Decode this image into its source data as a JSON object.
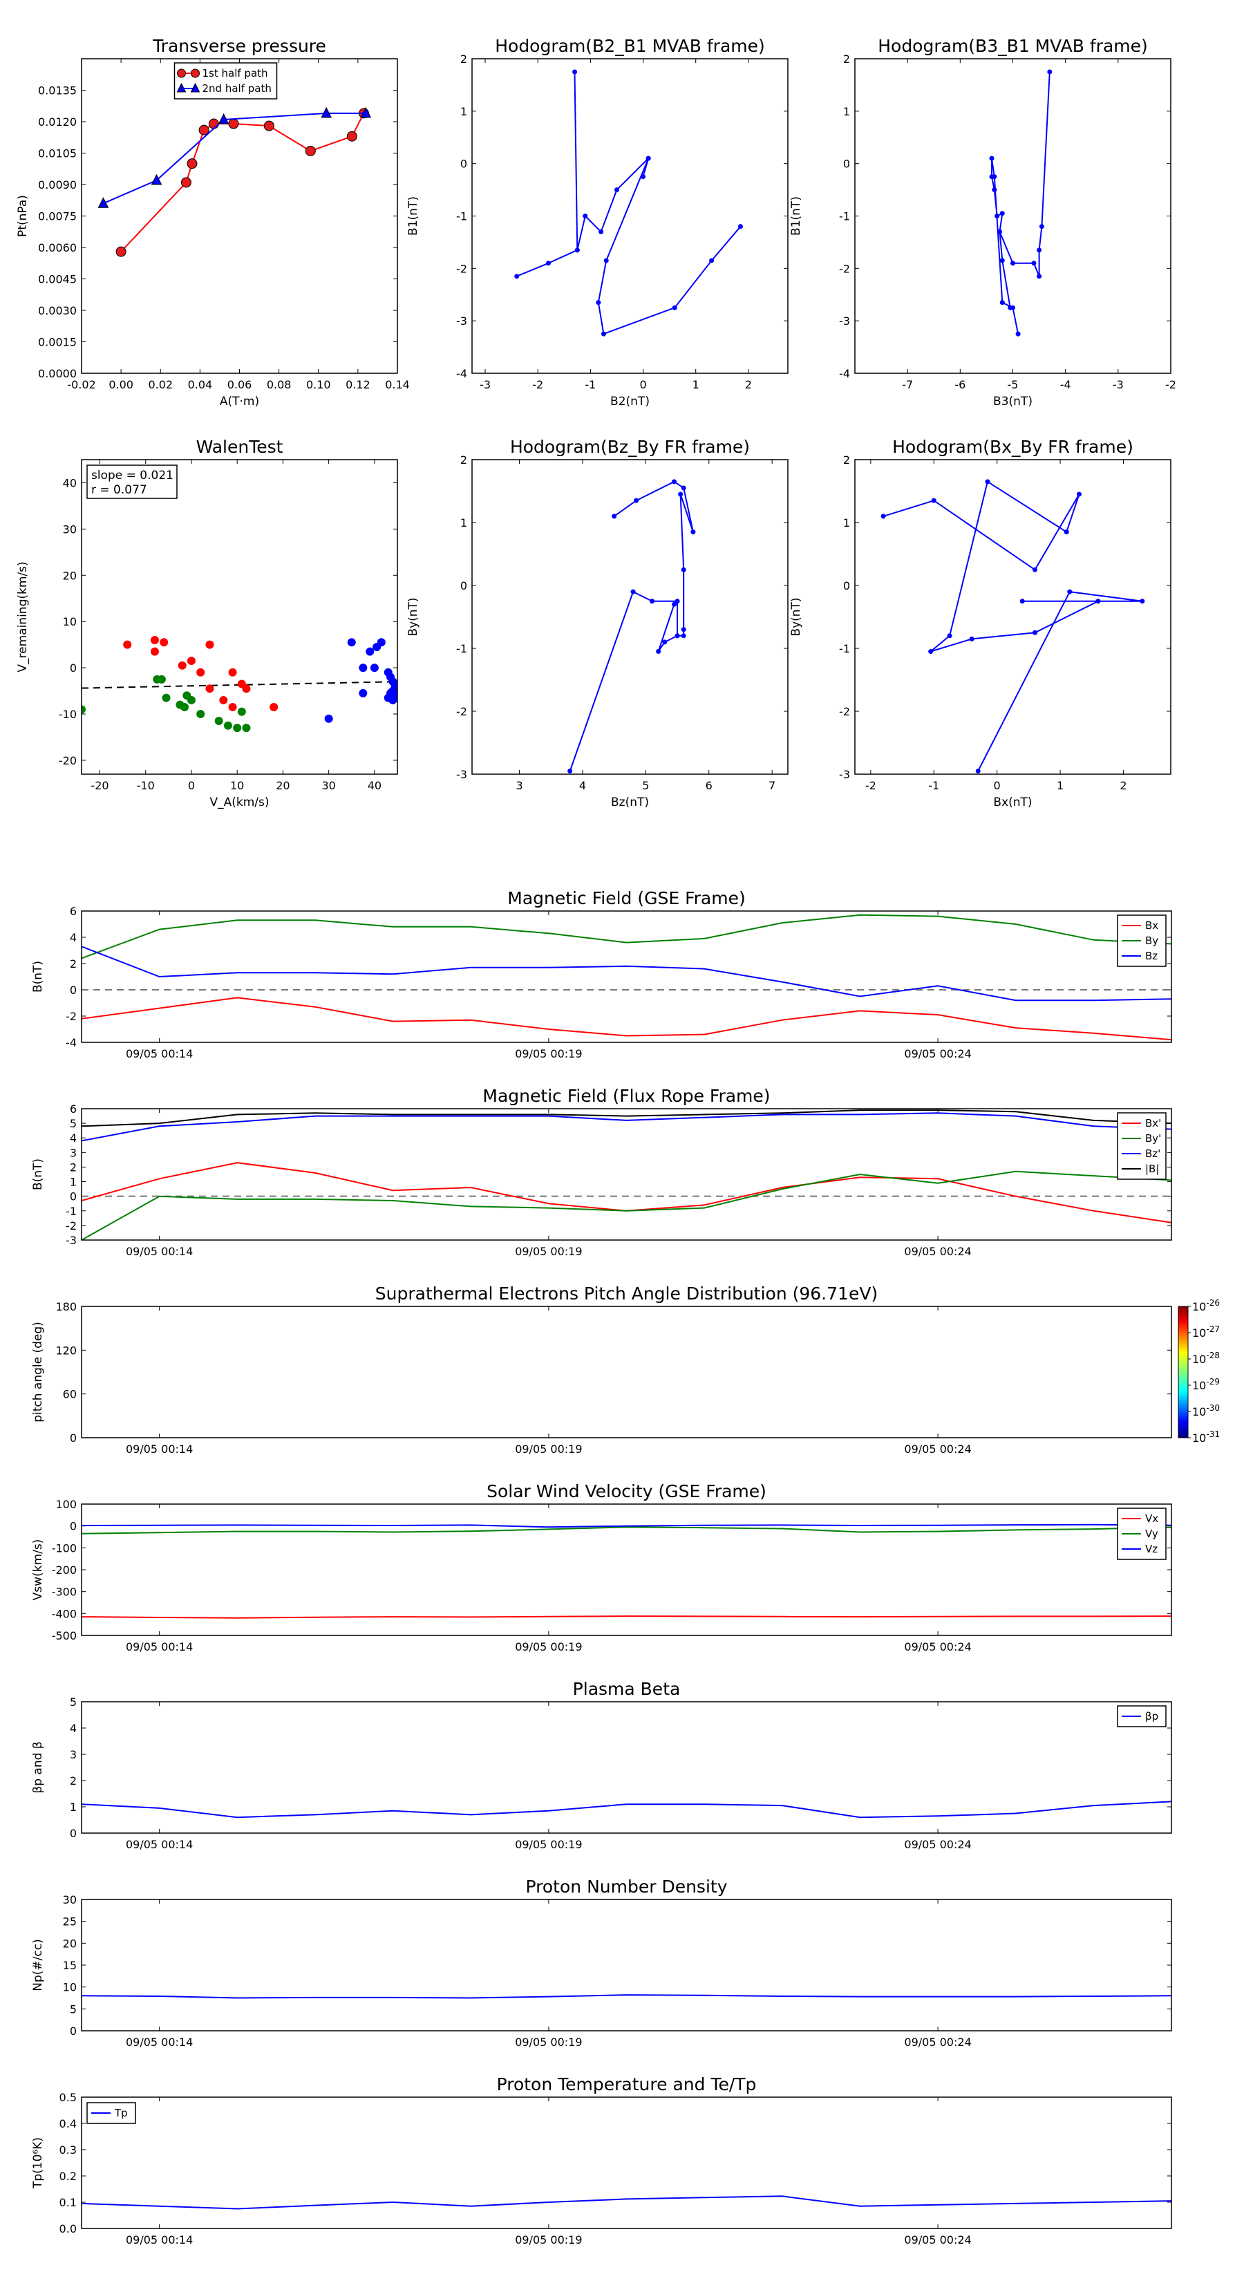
{
  "colors": {
    "red": "#ff0000",
    "green": "#008000",
    "blue": "#0000ff",
    "black": "#000000",
    "darkred": "#cc0000"
  },
  "chart_data": [
    {
      "id": "tp",
      "type": "line",
      "title": "Transverse pressure",
      "xlabel": "A(T·m)",
      "ylabel": "Pt(nPa)",
      "xlim": [
        -0.02,
        0.14
      ],
      "ylim": [
        0,
        0.015
      ],
      "xticks": [
        "-0.02",
        "0.00",
        "0.02",
        "0.04",
        "0.06",
        "0.08",
        "0.10",
        "0.12",
        "0.14"
      ],
      "yticks": [
        "0.0000",
        "0.0015",
        "0.0030",
        "0.0045",
        "0.0060",
        "0.0075",
        "0.0090",
        "0.0105",
        "0.0120",
        "0.0135"
      ],
      "legend": "top-center",
      "series": [
        {
          "name": "1st half path",
          "color": "red",
          "marker": "circle",
          "x": [
            0.0,
            0.033,
            0.036,
            0.042,
            0.047,
            0.057,
            0.075,
            0.096,
            0.117,
            0.123
          ],
          "y": [
            0.0058,
            0.0091,
            0.01,
            0.0116,
            0.0119,
            0.0119,
            0.0118,
            0.0106,
            0.0113,
            0.0124
          ]
        },
        {
          "name": "2nd half path",
          "color": "blue",
          "marker": "triangle",
          "x": [
            -0.009,
            0.018,
            0.052,
            0.104,
            0.124
          ],
          "y": [
            0.0081,
            0.0092,
            0.0121,
            0.0124,
            0.0124
          ]
        }
      ]
    },
    {
      "id": "h1",
      "type": "line",
      "title": "Hodogram(B2_B1 MVAB frame)",
      "xlabel": "B2(nT)",
      "ylabel": "B1(nT)",
      "xlim": [
        -3.25,
        2.75
      ],
      "ylim": [
        -4,
        2
      ],
      "xticks": [
        "-3",
        "-2",
        "-1",
        "0",
        "1",
        "2"
      ],
      "yticks": [
        "-4",
        "-3",
        "-2",
        "-1",
        "0",
        "1",
        "2"
      ],
      "series": [
        {
          "color": "blue",
          "marker": "dot",
          "x": [
            -1.3,
            -1.25,
            -1.1,
            -0.8,
            -0.5,
            0.1,
            -0.7,
            -0.85,
            -0.75,
            0.6,
            1.3,
            1.85
          ],
          "y": [
            1.75,
            -1.65,
            -1.0,
            -1.3,
            -0.5,
            0.1,
            -1.85,
            -2.65,
            -3.25,
            -2.75,
            -1.85,
            -1.2
          ]
        },
        {
          "color": "blue",
          "marker": "dot",
          "x": [
            -1.25,
            -1.8,
            -2.4
          ],
          "y": [
            -1.65,
            -1.9,
            -2.15
          ]
        },
        {
          "color": "blue",
          "marker": "dot",
          "x": [
            0.1,
            0.0
          ],
          "y": [
            0.1,
            -0.25
          ]
        }
      ]
    },
    {
      "id": "h2",
      "type": "line",
      "title": "Hodogram(B3_B1 MVAB frame)",
      "xlabel": "B3(nT)",
      "ylabel": "B1(nT)",
      "xlim": [
        -8,
        -2
      ],
      "ylim": [
        -4,
        2
      ],
      "xticks": [
        "-7",
        "-6",
        "-5",
        "-4",
        "-3",
        "-2"
      ],
      "yticks": [
        "-4",
        "-3",
        "-2",
        "-1",
        "0",
        "1",
        "2"
      ],
      "series": [
        {
          "color": "blue",
          "marker": "dot",
          "x": [
            -4.3,
            -4.45,
            -4.5,
            -4.5,
            -4.6,
            -5.0,
            -5.25,
            -5.2,
            -5.3,
            -5.35,
            -5.4,
            -5.4,
            -5.35,
            -5.2,
            -5.0,
            -4.9
          ],
          "y": [
            1.75,
            -1.2,
            -1.65,
            -2.15,
            -1.9,
            -1.9,
            -1.3,
            -0.95,
            -1.0,
            -0.5,
            -0.25,
            0.1,
            -0.25,
            -2.65,
            -2.75,
            -3.25
          ]
        },
        {
          "color": "blue",
          "marker": "dot",
          "x": [
            -5.25,
            -5.2,
            -5.05
          ],
          "y": [
            -1.3,
            -1.85,
            -2.75
          ]
        }
      ]
    },
    {
      "id": "walen",
      "type": "scatter",
      "title": "WalenTest",
      "xlabel": "V_A(km/s)",
      "ylabel": "V_remaining(km/s)",
      "xlim": [
        -24,
        45
      ],
      "ylim": [
        -23,
        45
      ],
      "xticks": [
        "-20",
        "-10",
        "0",
        "10",
        "20",
        "30",
        "40"
      ],
      "yticks": [
        "-20",
        "-10",
        "0",
        "10",
        "20",
        "30",
        "40"
      ],
      "annotation": [
        "slope = 0.021",
        "r = 0.077"
      ],
      "fit": {
        "x": [
          -24,
          45
        ],
        "y": [
          -4.4,
          -3.0
        ]
      },
      "series": [
        {
          "color": "red",
          "x": [
            -14,
            -8,
            -6,
            -8,
            -2,
            0,
            2,
            4,
            7,
            9,
            11,
            4,
            12,
            9,
            18
          ],
          "y": [
            5,
            6,
            5.5,
            3.5,
            0.5,
            1.5,
            -1,
            5,
            -7,
            -1,
            -3.5,
            -4.5,
            -4.5,
            -8.5,
            -8.5
          ]
        },
        {
          "color": "green",
          "x": [
            -24,
            -7.5,
            -6.5,
            -5.5,
            -2.5,
            -1.5,
            -1,
            0,
            2,
            6,
            8,
            10,
            12,
            11
          ],
          "y": [
            -9,
            -2.5,
            -2.5,
            -6.5,
            -8,
            -8.5,
            -6,
            -7,
            -10,
            -11.5,
            -12.5,
            -13,
            -13,
            -9.5
          ]
        },
        {
          "color": "blue",
          "x": [
            35,
            37.5,
            39,
            40.5,
            41.5,
            43,
            43.5,
            44,
            44.5,
            44,
            43.5,
            44.5,
            43,
            44,
            40,
            37.5,
            30
          ],
          "y": [
            5.5,
            -5.5,
            3.5,
            4.5,
            5.5,
            -1,
            -2,
            -3,
            -4,
            -5,
            -5.5,
            -6,
            -6.5,
            -7,
            0,
            0,
            -11
          ]
        }
      ]
    },
    {
      "id": "h3",
      "type": "line",
      "title": "Hodogram(Bz_By FR frame)",
      "xlabel": "Bz(nT)",
      "ylabel": "By(nT)",
      "xlim": [
        2.25,
        7.25
      ],
      "ylim": [
        -3,
        2
      ],
      "xticks": [
        "3",
        "4",
        "5",
        "6",
        "7"
      ],
      "yticks": [
        "-3",
        "-2",
        "-1",
        "0",
        "1",
        "2"
      ],
      "series": [
        {
          "color": "blue",
          "marker": "dot",
          "x": [
            3.8,
            4.8,
            5.1,
            5.5,
            5.5,
            5.6,
            5.6,
            5.6,
            5.55,
            5.75,
            5.6,
            5.45,
            4.85,
            4.5
          ],
          "y": [
            -2.95,
            -0.1,
            -0.25,
            -0.25,
            -0.8,
            -0.8,
            -0.7,
            0.25,
            1.45,
            0.85,
            1.55,
            1.65,
            1.35,
            1.1
          ]
        },
        {
          "color": "blue",
          "marker": "dot",
          "x": [
            5.5,
            5.3,
            5.2,
            5.45
          ],
          "y": [
            -0.8,
            -0.9,
            -1.05,
            -0.3
          ]
        }
      ]
    },
    {
      "id": "h4",
      "type": "line",
      "title": "Hodogram(Bx_By FR frame)",
      "xlabel": "Bx(nT)",
      "ylabel": "By(nT)",
      "xlim": [
        -2.25,
        2.75
      ],
      "ylim": [
        -3,
        2
      ],
      "xticks": [
        "-2",
        "-1",
        "0",
        "1",
        "2"
      ],
      "yticks": [
        "-3",
        "-2",
        "-1",
        "0",
        "1",
        "2"
      ],
      "series": [
        {
          "color": "blue",
          "marker": "dot",
          "x": [
            -0.3,
            1.15,
            2.3,
            0.4,
            1.6,
            0.6,
            -0.4,
            -1.05,
            -0.75,
            -0.15,
            1.1,
            1.3,
            0.6,
            -1.0,
            -1.8
          ],
          "y": [
            -2.95,
            -0.1,
            -0.25,
            -0.25,
            -0.25,
            -0.75,
            -0.85,
            -1.05,
            -0.8,
            1.65,
            0.85,
            1.45,
            0.25,
            1.35,
            1.1
          ]
        }
      ]
    },
    {
      "id": "mag",
      "type": "line",
      "title": "Magnetic Field (GSE Frame)",
      "ylabel": "B(nT)",
      "xlim": [
        0,
        14
      ],
      "ylim": [
        -4,
        6
      ],
      "xticks": [
        "09/05 00:14",
        "09/05 00:19",
        "09/05 00:24"
      ],
      "xtick_pos": [
        1,
        6,
        11
      ],
      "yticks": [
        "-4",
        "-2",
        "0",
        "2",
        "4",
        "6"
      ],
      "zero_line": true,
      "legend": "top-right",
      "series": [
        {
          "name": "Bx",
          "color": "red",
          "values": [
            -2.2,
            -1.4,
            -0.6,
            -1.3,
            -2.4,
            -2.3,
            -3.0,
            -3.5,
            -3.4,
            -2.3,
            -1.6,
            -1.9,
            -2.9,
            -3.3,
            -3.8
          ]
        },
        {
          "name": "By",
          "color": "green",
          "values": [
            2.4,
            4.6,
            5.3,
            5.3,
            4.8,
            4.8,
            4.3,
            3.6,
            3.9,
            5.1,
            5.7,
            5.6,
            5.0,
            3.8,
            3.5
          ]
        },
        {
          "name": "Bz",
          "color": "blue",
          "values": [
            3.3,
            1.0,
            1.3,
            1.3,
            1.2,
            1.7,
            1.7,
            1.8,
            1.6,
            0.6,
            -0.5,
            0.3,
            -0.8,
            -0.8,
            -0.7
          ]
        }
      ]
    },
    {
      "id": "magfr",
      "type": "line",
      "title": "Magnetic Field (Flux Rope Frame)",
      "ylabel": "B(nT)",
      "xlim": [
        0,
        14
      ],
      "ylim": [
        -3,
        6
      ],
      "xticks": [
        "09/05 00:14",
        "09/05 00:19",
        "09/05 00:24"
      ],
      "xtick_pos": [
        1,
        6,
        11
      ],
      "yticks": [
        "-3",
        "-2",
        "-1",
        "0",
        "1",
        "2",
        "3",
        "4",
        "5",
        "6"
      ],
      "zero_line": true,
      "legend": "top-right",
      "series": [
        {
          "name": "Bx'",
          "color": "red",
          "values": [
            -0.3,
            1.2,
            2.3,
            1.6,
            0.4,
            0.6,
            -0.5,
            -1.0,
            -0.6,
            0.6,
            1.3,
            1.2,
            0.0,
            -1.0,
            -1.8
          ]
        },
        {
          "name": "By'",
          "color": "green",
          "values": [
            -3.0,
            0.0,
            -0.2,
            -0.2,
            -0.3,
            -0.7,
            -0.8,
            -1.0,
            -0.8,
            0.5,
            1.5,
            0.9,
            1.7,
            1.4,
            1.1
          ]
        },
        {
          "name": "Bz'",
          "color": "blue",
          "values": [
            3.8,
            4.8,
            5.1,
            5.5,
            5.5,
            5.5,
            5.5,
            5.2,
            5.4,
            5.6,
            5.6,
            5.7,
            5.5,
            4.8,
            4.6
          ]
        },
        {
          "name": "|B|",
          "color": "black",
          "values": [
            4.8,
            5.0,
            5.6,
            5.7,
            5.6,
            5.6,
            5.6,
            5.5,
            5.6,
            5.7,
            5.9,
            5.9,
            5.8,
            5.2,
            5.0
          ]
        }
      ]
    },
    {
      "id": "pad",
      "type": "heatmap",
      "title": "Suprathermal Electrons Pitch Angle Distribution (96.71eV)",
      "ylabel": "pitch angle (deg)",
      "xlim": [
        0,
        14
      ],
      "ylim": [
        0,
        180
      ],
      "xticks": [
        "09/05 00:14",
        "09/05 00:19",
        "09/05 00:24"
      ],
      "xtick_pos": [
        1,
        6,
        11
      ],
      "yticks": [
        "0",
        "60",
        "120",
        "180"
      ],
      "colorbar": {
        "ticks": [
          "10",
          "10",
          "10",
          "10",
          "10",
          "10"
        ],
        "exponents": [
          "-31",
          "-30",
          "-29",
          "-28",
          "-27",
          "-26"
        ]
      }
    },
    {
      "id": "vsw",
      "type": "line",
      "title": "Solar Wind Velocity (GSE Frame)",
      "ylabel": "Vsw(km/s)",
      "xlim": [
        0,
        14
      ],
      "ylim": [
        -500,
        100
      ],
      "xticks": [
        "09/05 00:14",
        "09/05 00:19",
        "09/05 00:24"
      ],
      "xtick_pos": [
        1,
        6,
        11
      ],
      "yticks": [
        "-500",
        "-400",
        "-300",
        "-200",
        "-100",
        "0",
        "100"
      ],
      "legend": "top-right",
      "series": [
        {
          "name": "Vx",
          "color": "red",
          "values": [
            -415,
            -418,
            -420,
            -417,
            -415,
            -416,
            -414,
            -412,
            -413,
            -414,
            -415,
            -414,
            -413,
            -413,
            -412
          ]
        },
        {
          "name": "Vy",
          "color": "green",
          "values": [
            -35,
            -30,
            -25,
            -25,
            -28,
            -24,
            -15,
            -5,
            -8,
            -12,
            -28,
            -25,
            -18,
            -14,
            -6
          ]
        },
        {
          "name": "Vz",
          "color": "blue",
          "values": [
            2,
            3,
            4,
            3,
            2,
            4,
            -5,
            0,
            3,
            4,
            2,
            3,
            5,
            6,
            3
          ]
        }
      ]
    },
    {
      "id": "beta",
      "type": "line",
      "title": "Plasma Beta",
      "ylabel": "βp and β",
      "xlim": [
        0,
        14
      ],
      "ylim": [
        0,
        5
      ],
      "xticks": [
        "09/05 00:14",
        "09/05 00:19",
        "09/05 00:24"
      ],
      "xtick_pos": [
        1,
        6,
        11
      ],
      "yticks": [
        "0",
        "1",
        "2",
        "3",
        "4",
        "5"
      ],
      "legend": "top-right",
      "series": [
        {
          "name": "βp",
          "color": "blue",
          "values": [
            1.1,
            0.95,
            0.6,
            0.7,
            0.85,
            0.7,
            0.85,
            1.1,
            1.1,
            1.05,
            0.6,
            0.65,
            0.75,
            1.05,
            1.2
          ]
        }
      ]
    },
    {
      "id": "np",
      "type": "line",
      "title": "Proton Number Density",
      "ylabel": "Np(#/cc)",
      "xlim": [
        0,
        14
      ],
      "ylim": [
        0,
        30
      ],
      "xticks": [
        "09/05 00:14",
        "09/05 00:19",
        "09/05 00:24"
      ],
      "xtick_pos": [
        1,
        6,
        11
      ],
      "yticks": [
        "0",
        "5",
        "10",
        "15",
        "20",
        "25",
        "30"
      ],
      "series": [
        {
          "color": "blue",
          "values": [
            8.0,
            7.9,
            7.5,
            7.6,
            7.6,
            7.5,
            7.8,
            8.2,
            8.1,
            7.9,
            7.8,
            7.8,
            7.8,
            7.9,
            8.0
          ]
        }
      ]
    },
    {
      "id": "temp",
      "type": "line",
      "title": "Proton Temperature and Te/Tp",
      "ylabel": "Tp(10⁶K)",
      "xlim": [
        0,
        14
      ],
      "ylim": [
        0,
        0.5
      ],
      "xticks": [
        "09/05 00:14",
        "09/05 00:19",
        "09/05 00:24"
      ],
      "xtick_pos": [
        1,
        6,
        11
      ],
      "yticks": [
        "0.0",
        "0.1",
        "0.2",
        "0.3",
        "0.4",
        "0.5"
      ],
      "legend": "top-left",
      "series": [
        {
          "name": "Tp",
          "color": "blue",
          "values": [
            0.095,
            0.085,
            0.075,
            0.088,
            0.1,
            0.085,
            0.1,
            0.112,
            0.118,
            0.123,
            0.085,
            0.09,
            0.095,
            0.1,
            0.105
          ]
        }
      ]
    }
  ]
}
